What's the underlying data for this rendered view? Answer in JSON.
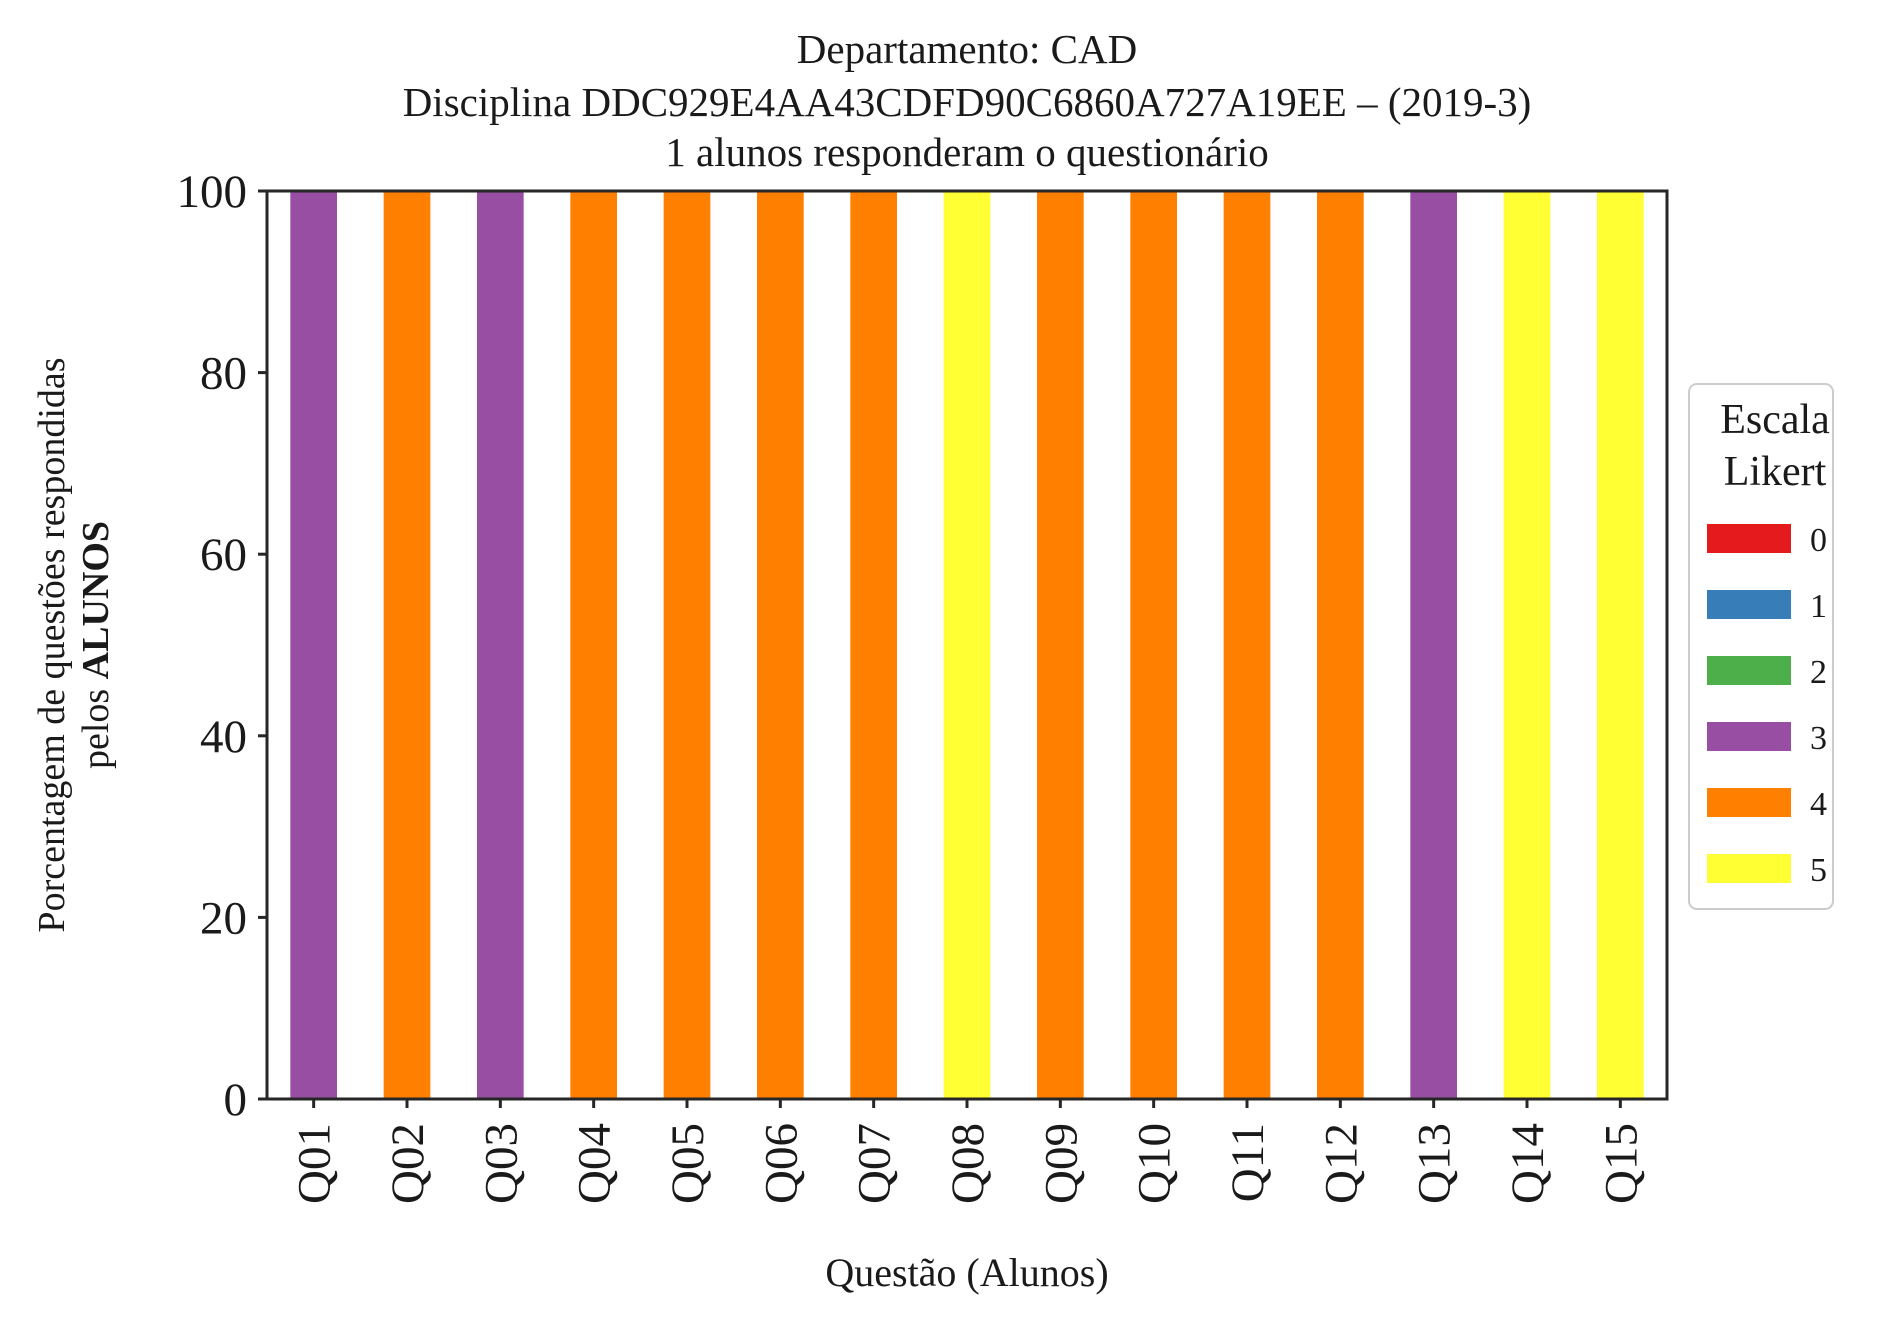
{
  "chart_data": {
    "type": "bar",
    "stacked": true,
    "title": [
      "Departamento: CAD",
      "Disciplina DDC929E4AA43CDFD90C6860A727A19EE – (2019-3)",
      "1 alunos responderam o questionário"
    ],
    "xlabel": "Questão (Alunos)",
    "ylabel_line1": "Porcentagem de questões respondidas",
    "ylabel_line2_prefix": "pelos ",
    "ylabel_line2_bold": "ALUNOS",
    "ylim": [
      0,
      100
    ],
    "yticks": [
      "0",
      "20",
      "40",
      "60",
      "80",
      "100"
    ],
    "categories": [
      "Q01",
      "Q02",
      "Q03",
      "Q04",
      "Q05",
      "Q06",
      "Q07",
      "Q08",
      "Q09",
      "Q10",
      "Q11",
      "Q12",
      "Q13",
      "Q14",
      "Q15"
    ],
    "series": [
      {
        "name": "0",
        "color": "#e41a1c",
        "values": [
          0,
          0,
          0,
          0,
          0,
          0,
          0,
          0,
          0,
          0,
          0,
          0,
          0,
          0,
          0
        ]
      },
      {
        "name": "1",
        "color": "#377eb8",
        "values": [
          0,
          0,
          0,
          0,
          0,
          0,
          0,
          0,
          0,
          0,
          0,
          0,
          0,
          0,
          0
        ]
      },
      {
        "name": "2",
        "color": "#4daf4a",
        "values": [
          0,
          0,
          0,
          0,
          0,
          0,
          0,
          0,
          0,
          0,
          0,
          0,
          0,
          0,
          0
        ]
      },
      {
        "name": "3",
        "color": "#984ea3",
        "values": [
          100,
          0,
          100,
          0,
          0,
          0,
          0,
          0,
          0,
          0,
          0,
          0,
          100,
          0,
          0
        ]
      },
      {
        "name": "4",
        "color": "#ff7f00",
        "values": [
          0,
          100,
          0,
          100,
          100,
          100,
          100,
          0,
          100,
          100,
          100,
          100,
          0,
          0,
          0
        ]
      },
      {
        "name": "5",
        "color": "#ffff33",
        "values": [
          0,
          0,
          0,
          0,
          0,
          0,
          0,
          100,
          0,
          0,
          0,
          0,
          0,
          100,
          100
        ]
      }
    ],
    "legend": {
      "title": [
        "Escala",
        "Likert"
      ],
      "placement": "center-right-outside"
    },
    "grid": false
  }
}
